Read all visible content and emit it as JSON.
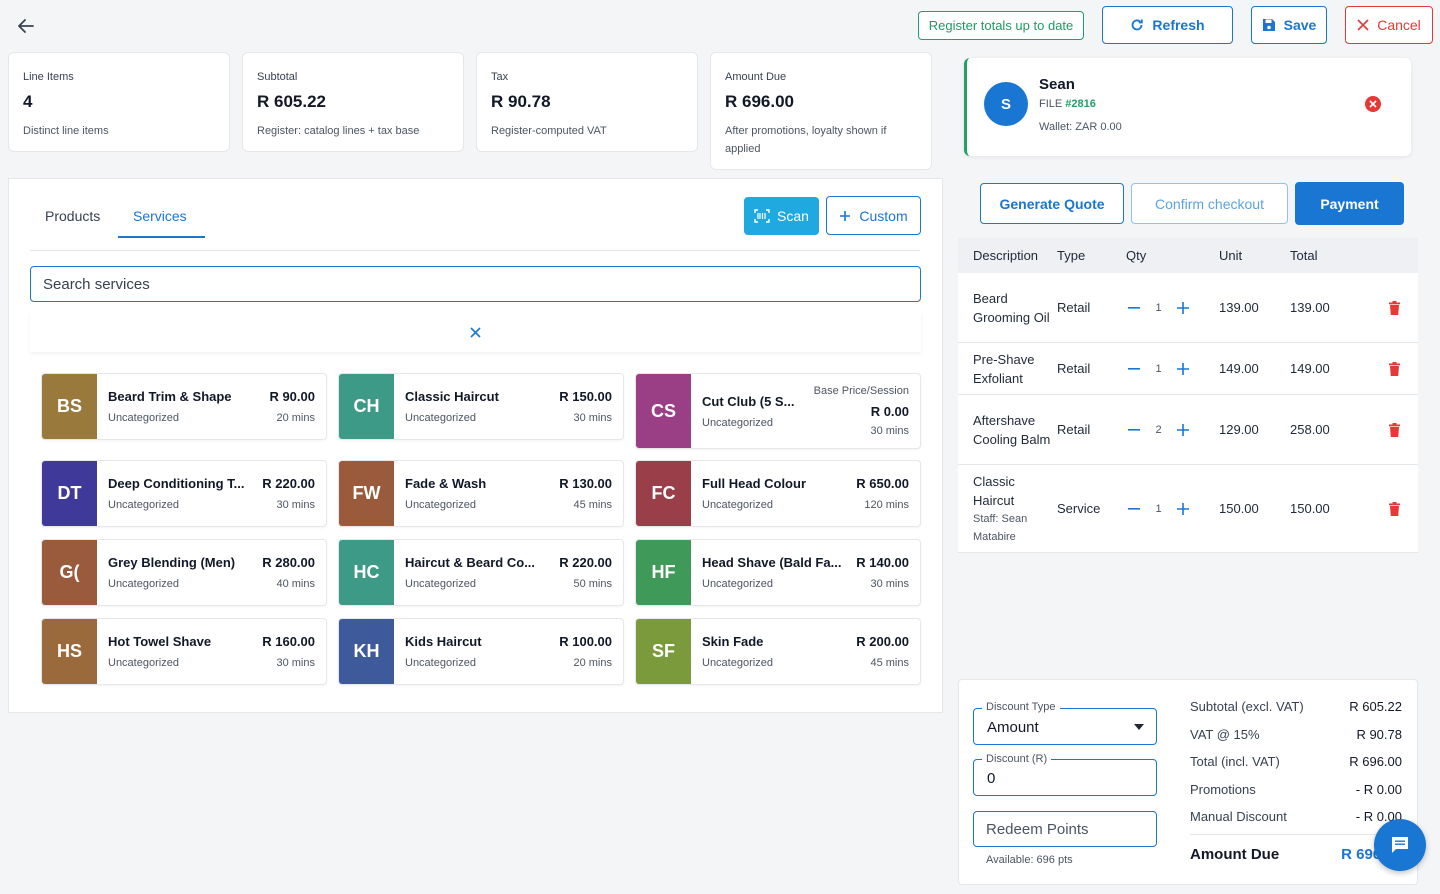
{
  "toolbar": {
    "register_totals_label": "Register totals up to date",
    "refresh_label": "Refresh",
    "save_label": "Save",
    "cancel_label": "Cancel"
  },
  "stats": [
    {
      "label": "Line Items",
      "value": "4",
      "sub": "Distinct line items"
    },
    {
      "label": "Subtotal",
      "value": "R 605.22",
      "sub": "Register: catalog lines + tax base"
    },
    {
      "label": "Tax",
      "value": "R 90.78",
      "sub": "Register-computed VAT"
    },
    {
      "label": "Amount Due",
      "value": "R 696.00",
      "sub": "After promotions, loyalty shown if applied"
    }
  ],
  "tabs": {
    "products": "Products",
    "services": "Services"
  },
  "actions": {
    "scan": "Scan",
    "custom": "Custom"
  },
  "search": {
    "placeholder": "Search services"
  },
  "services": [
    {
      "initials": "BS",
      "color": "#9a7a3c",
      "name": "Beard Trim & Shape",
      "category": "Uncategorized",
      "price": "R 90.00",
      "duration": "20 mins"
    },
    {
      "initials": "CH",
      "color": "#3d9a86",
      "name": "Classic Haircut",
      "category": "Uncategorized",
      "price": "R 150.00",
      "duration": "30 mins"
    },
    {
      "initials": "CS",
      "color": "#9a3f86",
      "name": "Cut Club (5 S...",
      "category": "Uncategorized",
      "base_label": "Base Price/Session",
      "price": "R 0.00",
      "duration": "30 mins"
    },
    {
      "initials": "DT",
      "color": "#3f3a9a",
      "name": "Deep Conditioning T...",
      "category": "Uncategorized",
      "price": "R 220.00",
      "duration": "30 mins"
    },
    {
      "initials": "FW",
      "color": "#9a5a3c",
      "name": "Fade & Wash",
      "category": "Uncategorized",
      "price": "R 130.00",
      "duration": "45 mins"
    },
    {
      "initials": "FC",
      "color": "#9a3f4a",
      "name": "Full Head Colour",
      "category": "Uncategorized",
      "price": "R 650.00",
      "duration": "120 mins"
    },
    {
      "initials": "G(",
      "color": "#9a5a3c",
      "name": "Grey Blending (Men)",
      "category": "Uncategorized",
      "price": "R 280.00",
      "duration": "40 mins"
    },
    {
      "initials": "HC",
      "color": "#3d9a86",
      "name": "Haircut & Beard Co...",
      "category": "Uncategorized",
      "price": "R 220.00",
      "duration": "50 mins"
    },
    {
      "initials": "HF",
      "color": "#3f9a5a",
      "name": "Head Shave (Bald Fa...",
      "category": "Uncategorized",
      "price": "R 140.00",
      "duration": "30 mins"
    },
    {
      "initials": "HS",
      "color": "#9a6a3c",
      "name": "Hot Towel Shave",
      "category": "Uncategorized",
      "price": "R 160.00",
      "duration": "30 mins"
    },
    {
      "initials": "KH",
      "color": "#3f5a9a",
      "name": "Kids Haircut",
      "category": "Uncategorized",
      "price": "R 100.00",
      "duration": "20 mins"
    },
    {
      "initials": "SF",
      "color": "#7a9a3c",
      "name": "Skin Fade",
      "category": "Uncategorized",
      "price": "R 200.00",
      "duration": "45 mins"
    }
  ],
  "customer": {
    "initial": "S",
    "name": "Sean",
    "file_label": "FILE",
    "file_no": "#2816",
    "wallet": "Wallet: ZAR 0.00"
  },
  "checkout": {
    "quote": "Generate Quote",
    "confirm": "Confirm checkout",
    "payment": "Payment"
  },
  "cart": {
    "headers": {
      "description": "Description",
      "type": "Type",
      "qty": "Qty",
      "unit": "Unit",
      "total": "Total"
    },
    "rows": [
      {
        "desc": "Beard Grooming Oil",
        "type": "Retail",
        "qty": "1",
        "unit": "139.00",
        "total": "139.00",
        "staff": ""
      },
      {
        "desc": "Pre-Shave Exfoliant",
        "type": "Retail",
        "qty": "1",
        "unit": "149.00",
        "total": "149.00",
        "staff": ""
      },
      {
        "desc": "Aftershave Cooling Balm",
        "type": "Retail",
        "qty": "2",
        "unit": "129.00",
        "total": "258.00",
        "staff": ""
      },
      {
        "desc": "Classic Haircut",
        "type": "Service",
        "qty": "1",
        "unit": "150.00",
        "total": "150.00",
        "staff": "Staff: Sean Matabire"
      }
    ]
  },
  "discount": {
    "type_label": "Discount Type",
    "type_value": "Amount",
    "amount_label": "Discount (R)",
    "amount_value": "0",
    "redeem_placeholder": "Redeem Points",
    "available": "Available: 696 pts"
  },
  "summary": {
    "subtotal_label": "Subtotal (excl. VAT)",
    "subtotal": "R 605.22",
    "vat_label": "VAT @ 15%",
    "vat": "R 90.78",
    "total_label": "Total (incl. VAT)",
    "total": "R 696.00",
    "promotions_label": "Promotions",
    "promotions": "- R 0.00",
    "manual_label": "Manual Discount",
    "manual": "- R 0.00",
    "due_label": "Amount Due",
    "due": "R 696.00"
  },
  "colors": {
    "primary": "#1976d2",
    "success": "#22a06b",
    "danger": "#e53935",
    "scan": "#1fa9e0"
  }
}
